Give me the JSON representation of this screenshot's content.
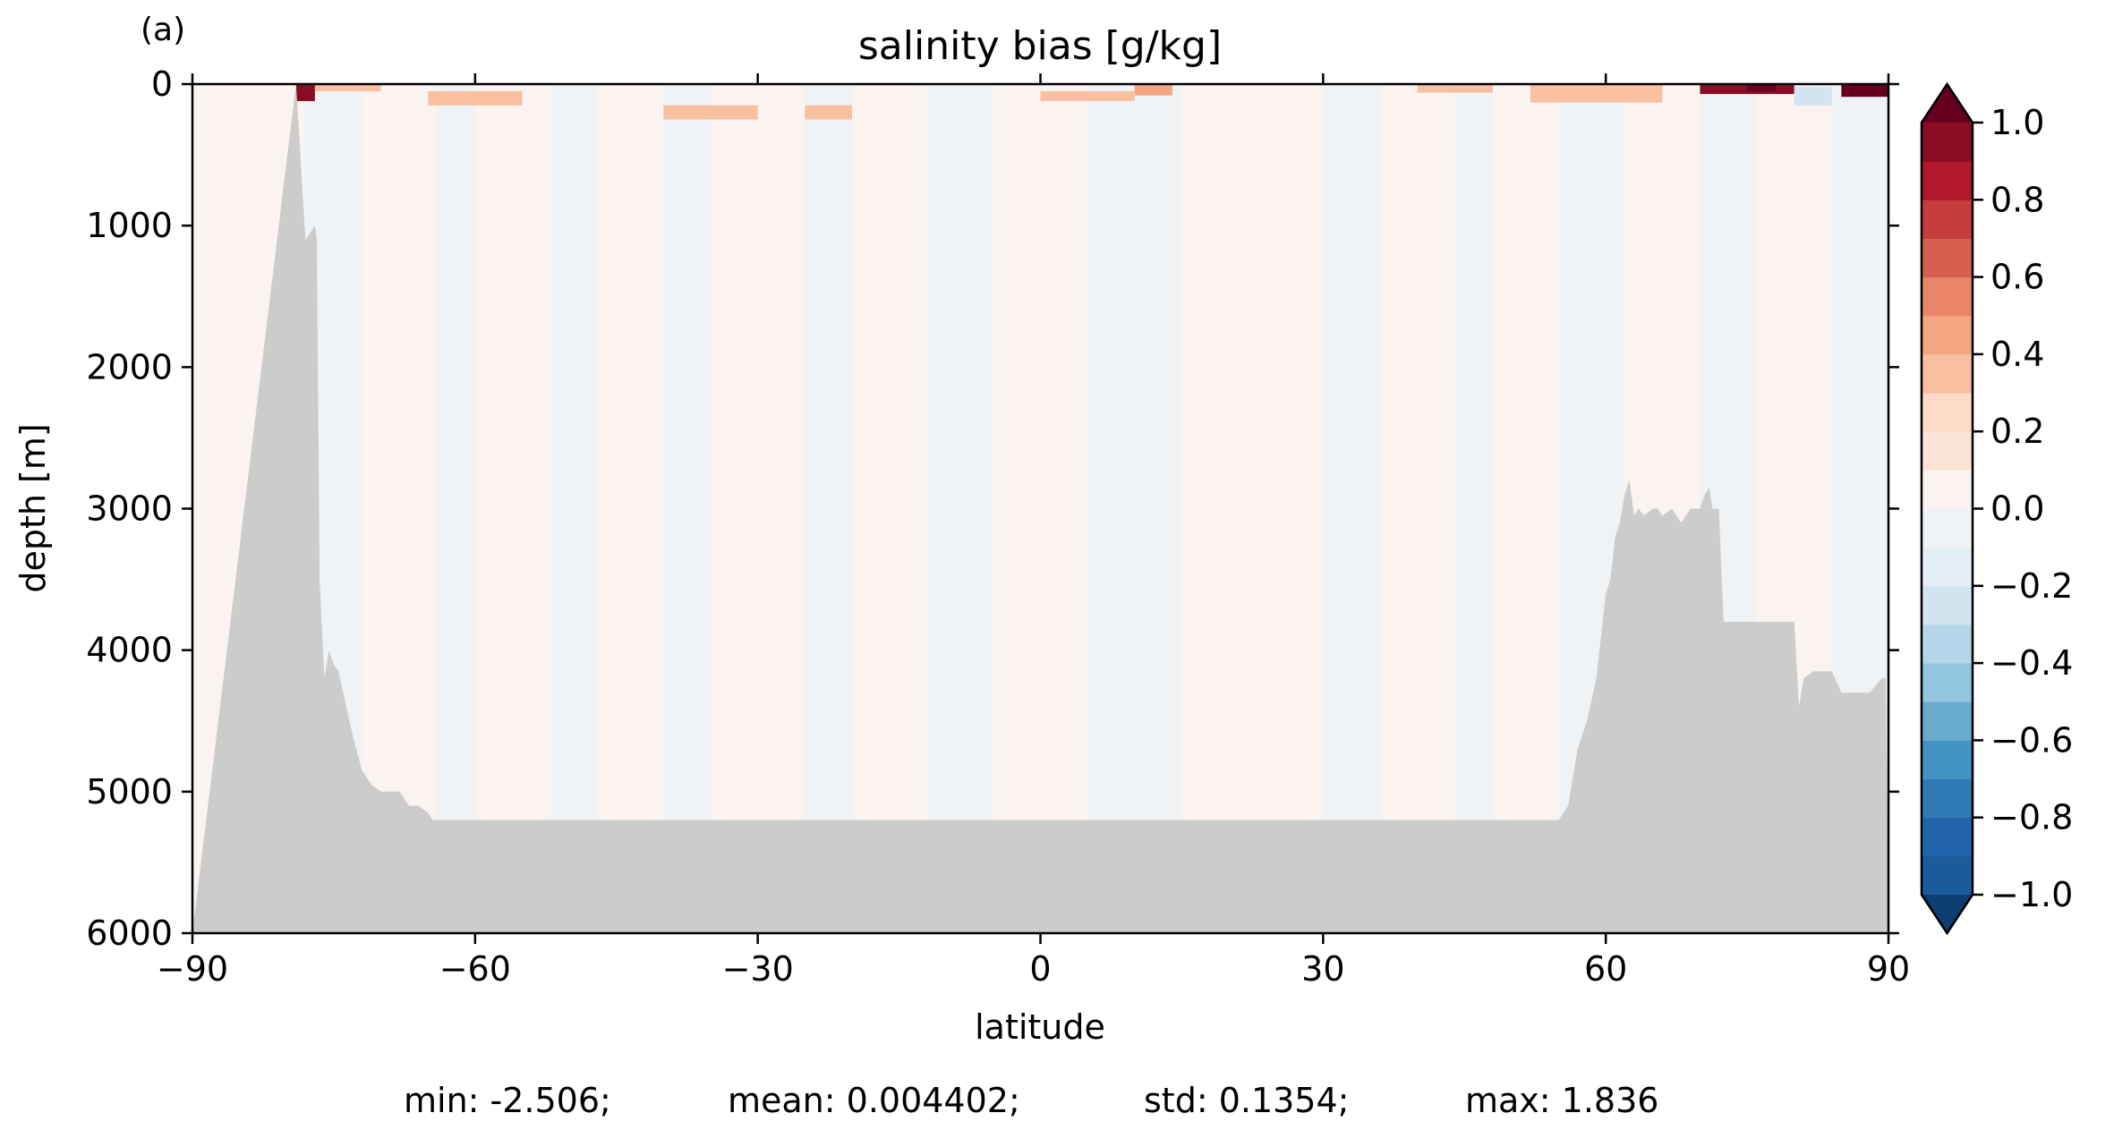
{
  "panel_label": "(a)",
  "stats_line": {
    "min": "min: -2.506;",
    "mean": "mean: 0.004402;",
    "std": "std: 0.1354;",
    "max": "max: 1.836"
  },
  "chart_data": {
    "type": "heatmap",
    "title": "salinity bias [g/kg]",
    "xlabel": "latitude",
    "ylabel": "depth [m]",
    "xlim": [
      -90,
      90
    ],
    "ylim": [
      6000,
      0
    ],
    "y_inverted": true,
    "x_ticks": [
      -90,
      -60,
      -30,
      0,
      30,
      60,
      90
    ],
    "x_tick_labels": [
      "−90",
      "−60",
      "−30",
      "0",
      "30",
      "60",
      "90"
    ],
    "y_ticks": [
      0,
      1000,
      2000,
      3000,
      4000,
      5000,
      6000
    ],
    "y_tick_labels": [
      "0",
      "1000",
      "2000",
      "3000",
      "4000",
      "5000",
      "6000"
    ],
    "colorbar": {
      "levels": [
        -1.0,
        -0.9,
        -0.8,
        -0.7,
        -0.6,
        -0.5,
        -0.4,
        -0.3,
        -0.2,
        -0.1,
        0.0,
        0.1,
        0.2,
        0.3,
        0.4,
        0.5,
        0.6,
        0.7,
        0.8,
        0.9,
        1.0
      ],
      "colors": [
        "#1b5a9b",
        "#2166ac",
        "#2f79b5",
        "#4393c3",
        "#6aacd0",
        "#92c5de",
        "#b4d6e8",
        "#d1e5f0",
        "#e3eef5",
        "#eff3f6",
        "#faf3ef",
        "#fbe3d6",
        "#fddbc7",
        "#f8bfa0",
        "#f4a582",
        "#e9866a",
        "#d6604d",
        "#c43c3c",
        "#b2182b",
        "#8b0d24"
      ],
      "extend_min_color": "#0c3e70",
      "extend_max_color": "#67001f",
      "ticks": [
        1.0,
        0.8,
        0.6,
        0.4,
        0.2,
        0.0,
        -0.2,
        -0.4,
        -0.6,
        -0.8,
        -1.0
      ],
      "tick_labels": [
        "1.0",
        "0.8",
        "0.6",
        "0.4",
        "0.2",
        "0.0",
        "−0.2",
        "−0.4",
        "−0.6",
        "−0.8",
        "−1.0"
      ]
    },
    "land_color": "#cccccc",
    "bottom_profile": {
      "lat": [
        -90,
        -79,
        -78,
        -77,
        -76.8,
        -76.5,
        -76,
        -75.5,
        -75,
        -74.5,
        -74,
        -73,
        -72,
        -71,
        -70,
        -69,
        -68,
        -67,
        -66,
        -65,
        -64.5,
        -60,
        -30,
        0,
        30,
        55,
        56,
        56.5,
        57,
        58,
        59,
        60,
        60.5,
        61,
        61.5,
        62,
        62.5,
        63,
        63.5,
        64,
        65,
        65.5,
        66,
        67,
        68,
        69,
        69.5,
        70,
        70.5,
        71,
        71.3,
        72,
        72.5,
        75,
        77,
        80,
        80.5,
        81,
        82,
        83,
        84,
        85,
        88,
        89.3,
        89.7,
        90
      ],
      "depth": [
        6000,
        0,
        1100,
        1000,
        1100,
        3500,
        4200,
        4000,
        4100,
        4150,
        4300,
        4600,
        4850,
        4950,
        5000,
        5000,
        5000,
        5100,
        5100,
        5150,
        5200,
        5200,
        5200,
        5200,
        5200,
        5200,
        5100,
        4900,
        4700,
        4500,
        4200,
        3600,
        3500,
        3200,
        3100,
        2900,
        2800,
        3050,
        3000,
        3050,
        3000,
        3000,
        3050,
        3000,
        3100,
        3000,
        3000,
        3000,
        2900,
        2850,
        3000,
        3000,
        3800,
        3800,
        3800,
        3800,
        4400,
        4200,
        4150,
        4150,
        4150,
        4300,
        4300,
        4200,
        4200,
        6000
      ]
    },
    "field_approximation": [
      {
        "lat0": -78,
        "lat1": -72,
        "value": -0.05
      },
      {
        "lat0": -72,
        "lat1": -64,
        "value": 0.05
      },
      {
        "lat0": -64,
        "lat1": -60,
        "value": -0.05
      },
      {
        "lat0": -60,
        "lat1": -52,
        "value": 0.05
      },
      {
        "lat0": -52,
        "lat1": -47,
        "value": -0.05
      },
      {
        "lat0": -47,
        "lat1": -40,
        "value": 0.05
      },
      {
        "lat0": -40,
        "lat1": -35,
        "value": -0.05
      },
      {
        "lat0": -35,
        "lat1": -25,
        "value": 0.05
      },
      {
        "lat0": -25,
        "lat1": -20,
        "value": -0.05
      },
      {
        "lat0": -20,
        "lat1": -12,
        "value": 0.05
      },
      {
        "lat0": -12,
        "lat1": -5,
        "value": -0.05
      },
      {
        "lat0": -5,
        "lat1": 5,
        "value": 0.05
      },
      {
        "lat0": 5,
        "lat1": 15,
        "value": -0.05
      },
      {
        "lat0": 15,
        "lat1": 30,
        "value": 0.05
      },
      {
        "lat0": 30,
        "lat1": 36,
        "value": -0.05
      },
      {
        "lat0": 36,
        "lat1": 44,
        "value": 0.05
      },
      {
        "lat0": 44,
        "lat1": 48,
        "value": -0.05
      },
      {
        "lat0": 48,
        "lat1": 55,
        "value": 0.05
      },
      {
        "lat0": 55,
        "lat1": 62,
        "value": -0.05
      },
      {
        "lat0": 62,
        "lat1": 70,
        "value": 0.05
      },
      {
        "lat0": 70,
        "lat1": 76,
        "value": -0.05
      },
      {
        "lat0": 76,
        "lat1": 84,
        "value": 0.05
      },
      {
        "lat0": 84,
        "lat1": 90,
        "value": -0.05
      }
    ],
    "surface_features": [
      {
        "lat0": -79,
        "lat1": -77,
        "depth0": 0,
        "depth1": 120,
        "value": 0.9
      },
      {
        "lat0": -77,
        "lat1": -70,
        "depth0": 0,
        "depth1": 50,
        "value": 0.3
      },
      {
        "lat0": -65,
        "lat1": -55,
        "depth0": 50,
        "depth1": 150,
        "value": 0.3
      },
      {
        "lat0": -40,
        "lat1": -30,
        "depth0": 150,
        "depth1": 250,
        "value": 0.3
      },
      {
        "lat0": -25,
        "lat1": -20,
        "depth0": 150,
        "depth1": 250,
        "value": 0.3
      },
      {
        "lat0": 0,
        "lat1": 10,
        "depth0": 50,
        "depth1": 120,
        "value": 0.3
      },
      {
        "lat0": 10,
        "lat1": 14,
        "depth0": 0,
        "depth1": 80,
        "value": 0.45
      },
      {
        "lat0": 40,
        "lat1": 48,
        "depth0": 0,
        "depth1": 60,
        "value": 0.3
      },
      {
        "lat0": 52,
        "lat1": 66,
        "depth0": 0,
        "depth1": 130,
        "value": 0.35
      },
      {
        "lat0": 70,
        "lat1": 80,
        "depth0": 0,
        "depth1": 70,
        "value": 0.9
      },
      {
        "lat0": 75,
        "lat1": 78,
        "depth0": 0,
        "depth1": 50,
        "value": 1.1
      },
      {
        "lat0": 85,
        "lat1": 90,
        "depth0": 0,
        "depth1": 90,
        "value": 1.1
      },
      {
        "lat0": 80,
        "lat1": 84,
        "depth0": 20,
        "depth1": 150,
        "value": -0.25
      }
    ]
  }
}
